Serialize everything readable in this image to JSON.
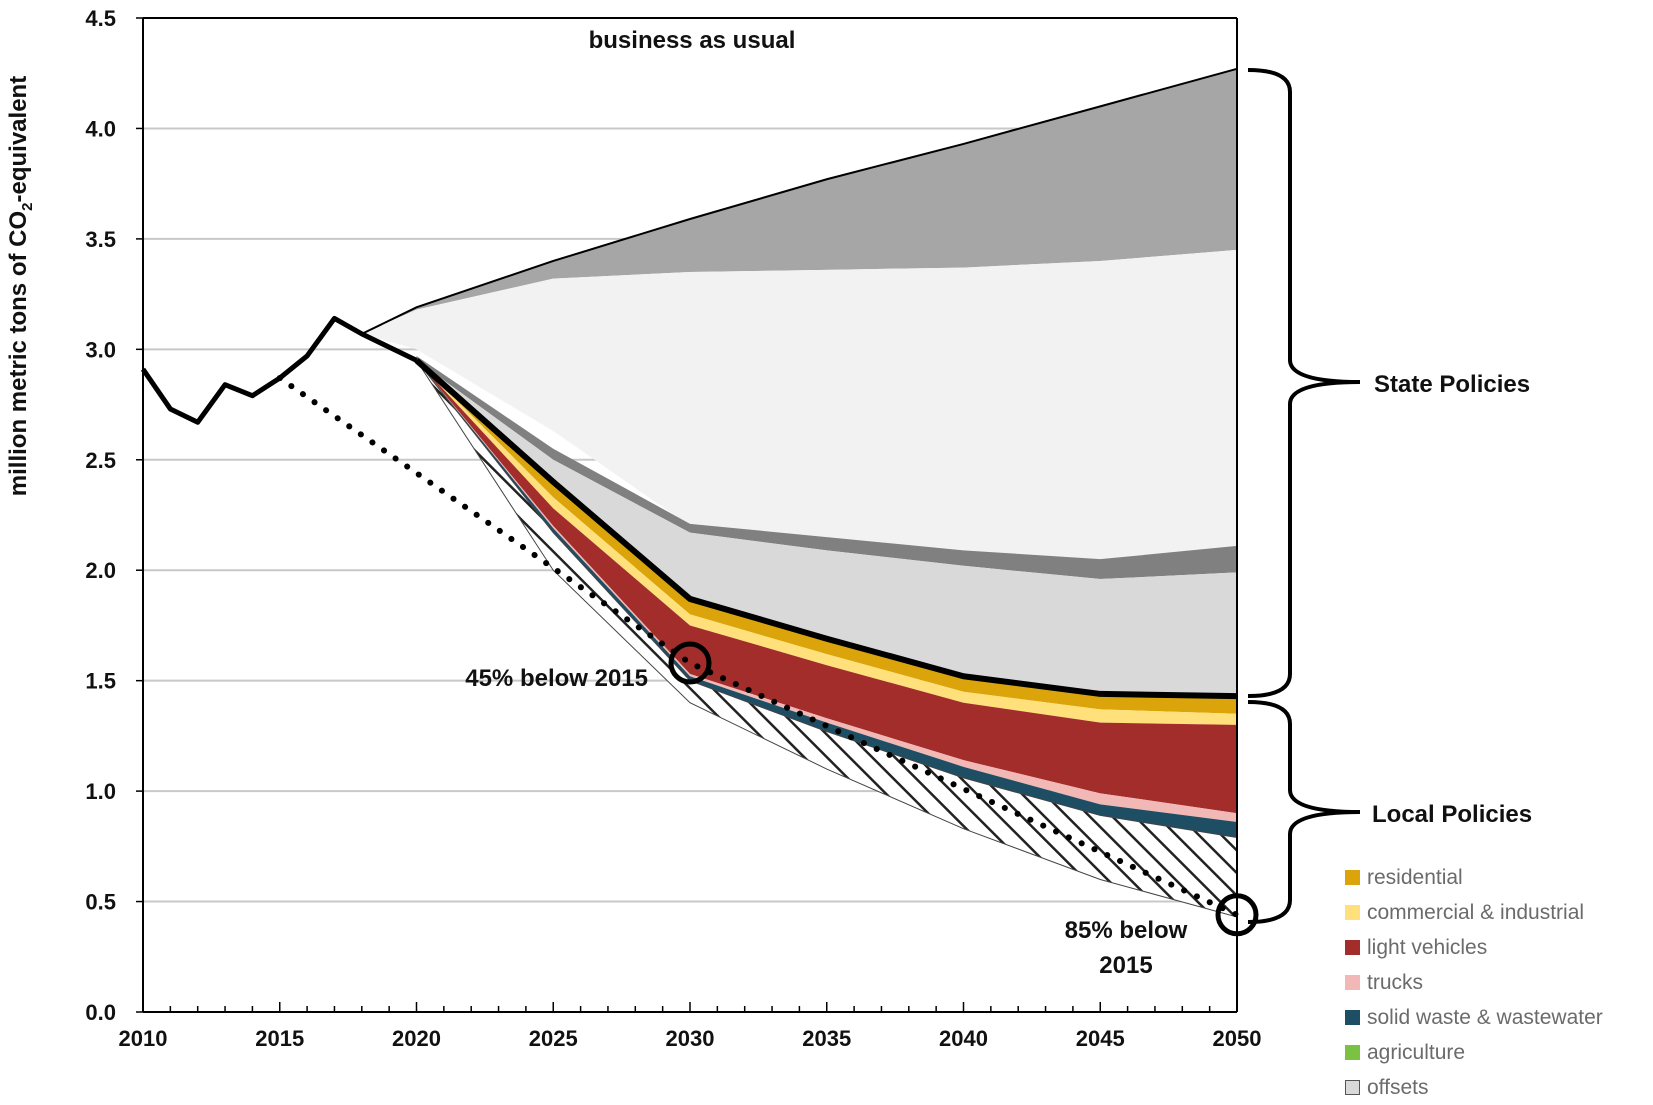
{
  "chart_data": {
    "type": "area",
    "ylabel_prefix": "million metric tons of CO",
    "ylabel_sub": "2",
    "ylabel_suffix": "-equivalent",
    "ylim": [
      0,
      4.5
    ],
    "xlim": [
      2010,
      2050
    ],
    "yticks": [
      0.0,
      0.5,
      1.0,
      1.5,
      2.0,
      2.5,
      3.0,
      3.5,
      4.0,
      4.5
    ],
    "ytick_labels": [
      "0.0",
      "0.5",
      "1.0",
      "1.5",
      "2.0",
      "2.5",
      "3.0",
      "3.5",
      "4.0",
      "4.5"
    ],
    "xticks": [
      2010,
      2015,
      2020,
      2025,
      2030,
      2035,
      2040,
      2045,
      2050
    ],
    "xtick_labels": [
      "2010",
      "2015",
      "2020",
      "2025",
      "2030",
      "2035",
      "2040",
      "2045",
      "2050"
    ],
    "grid": true,
    "historical": {
      "x": [
        2010,
        2011,
        2012,
        2013,
        2014,
        2015,
        2016,
        2017,
        2018,
        2019,
        2020
      ],
      "y": [
        2.91,
        2.73,
        2.67,
        2.84,
        2.79,
        2.87,
        2.97,
        3.14,
        3.07,
        3.01,
        2.95
      ]
    },
    "business_as_usual": {
      "x": [
        2018,
        2020,
        2025,
        2030,
        2035,
        2040,
        2045,
        2050
      ],
      "y": [
        3.07,
        3.19,
        3.4,
        3.59,
        3.77,
        3.93,
        4.1,
        4.27
      ]
    },
    "series": [
      {
        "name": "",
        "color": "#a6a6a6",
        "x": [
          2018,
          2020,
          2025,
          2030,
          2035,
          2040,
          2045,
          2050
        ],
        "lower": [
          3.07,
          3.18,
          3.32,
          3.35,
          3.36,
          3.37,
          3.4,
          3.45
        ],
        "upper": [
          3.07,
          3.19,
          3.4,
          3.59,
          3.77,
          3.93,
          4.1,
          4.27
        ]
      },
      {
        "name": "",
        "color": "#f2f2f2",
        "x": [
          2018,
          2020,
          2025,
          2030,
          2035,
          2040,
          2045,
          2050
        ],
        "lower": [
          3.07,
          3.0,
          2.63,
          2.2,
          2.14,
          2.09,
          2.05,
          2.1
        ],
        "upper": [
          3.07,
          3.18,
          3.32,
          3.35,
          3.36,
          3.37,
          3.4,
          3.45
        ]
      },
      {
        "name": "",
        "color": "#808080",
        "x": [
          2020,
          2025,
          2030,
          2035,
          2040,
          2045,
          2050
        ],
        "lower": [
          2.95,
          2.5,
          2.17,
          2.09,
          2.02,
          1.96,
          1.99
        ],
        "upper": [
          2.97,
          2.55,
          2.21,
          2.15,
          2.09,
          2.05,
          2.11
        ]
      },
      {
        "name": "",
        "color": "#d9d9d9",
        "x": [
          2020,
          2025,
          2030,
          2035,
          2040,
          2045,
          2050
        ],
        "lower": [
          2.95,
          2.4,
          1.87,
          1.69,
          1.52,
          1.44,
          1.43
        ],
        "upper": [
          2.95,
          2.5,
          2.17,
          2.09,
          2.02,
          1.96,
          1.99
        ]
      },
      {
        "name": "residential",
        "color": "#dba40a",
        "x": [
          2020,
          2025,
          2030,
          2035,
          2040,
          2045,
          2050
        ],
        "lower": [
          2.95,
          2.33,
          1.8,
          1.62,
          1.45,
          1.37,
          1.35
        ],
        "upper": [
          2.95,
          2.4,
          1.87,
          1.69,
          1.52,
          1.44,
          1.43
        ]
      },
      {
        "name": "commercial & industrial",
        "color": "#ffe07a",
        "x": [
          2020,
          2025,
          2030,
          2035,
          2040,
          2045,
          2050
        ],
        "lower": [
          2.95,
          2.28,
          1.75,
          1.57,
          1.4,
          1.31,
          1.3
        ],
        "upper": [
          2.95,
          2.33,
          1.8,
          1.62,
          1.45,
          1.37,
          1.35
        ]
      },
      {
        "name": "light vehicles",
        "color": "#a32d2b",
        "x": [
          2020,
          2025,
          2030,
          2035,
          2040,
          2045,
          2050
        ],
        "lower": [
          2.95,
          2.2,
          1.53,
          1.33,
          1.14,
          0.99,
          0.9
        ],
        "upper": [
          2.95,
          2.28,
          1.75,
          1.57,
          1.4,
          1.31,
          1.3
        ]
      },
      {
        "name": "trucks",
        "color": "#f2b8b5",
        "x": [
          2020,
          2025,
          2030,
          2035,
          2040,
          2045,
          2050
        ],
        "lower": [
          2.95,
          2.19,
          1.52,
          1.31,
          1.11,
          0.94,
          0.86
        ],
        "upper": [
          2.95,
          2.2,
          1.53,
          1.33,
          1.14,
          0.99,
          0.9
        ]
      },
      {
        "name": "solid waste & wastewater",
        "color": "#1e4e64",
        "x": [
          2020,
          2025,
          2030,
          2035,
          2040,
          2045,
          2050
        ],
        "lower": [
          2.95,
          2.17,
          1.5,
          1.27,
          1.06,
          0.89,
          0.79
        ],
        "upper": [
          2.95,
          2.19,
          1.52,
          1.31,
          1.11,
          0.94,
          0.86
        ]
      },
      {
        "name": "agriculture",
        "color": "#7cc242",
        "x": [
          2020,
          2025,
          2030,
          2035,
          2040,
          2045,
          2050
        ],
        "lower": [
          2.95,
          2.17,
          1.5,
          1.27,
          1.06,
          0.89,
          0.79
        ],
        "upper": [
          2.95,
          2.17,
          1.5,
          1.27,
          1.06,
          0.89,
          0.79
        ]
      },
      {
        "name": "offsets",
        "color": "hatch",
        "x": [
          2020,
          2025,
          2030,
          2035,
          2040,
          2045,
          2050
        ],
        "lower": [
          2.95,
          2.0,
          1.4,
          1.1,
          0.83,
          0.6,
          0.43
        ],
        "upper": [
          2.95,
          2.17,
          1.5,
          1.27,
          1.06,
          0.89,
          0.79
        ]
      }
    ],
    "policy_path": {
      "x": [
        2020,
        2025,
        2030,
        2035,
        2040,
        2045,
        2050
      ],
      "y": [
        2.95,
        2.4,
        1.87,
        1.69,
        1.52,
        1.44,
        1.43
      ]
    },
    "target_line": {
      "x": [
        2015,
        2030,
        2050
      ],
      "y": [
        2.87,
        1.58,
        0.44
      ]
    },
    "annotations": {
      "bau": "business as usual",
      "state": "State Policies",
      "local": "Local Policies",
      "target_2030": "45% below 2015",
      "target_2050_line1": "85% below",
      "target_2050_line2": "2015"
    },
    "targets": [
      {
        "x": 2030,
        "y": 1.58
      },
      {
        "x": 2050,
        "y": 0.44
      }
    ],
    "legend": [
      {
        "name": "residential",
        "color": "#dba40a"
      },
      {
        "name": "commercial & industrial",
        "color": "#ffe07a"
      },
      {
        "name": "light vehicles",
        "color": "#a32d2b"
      },
      {
        "name": "trucks",
        "color": "#f2b8b5"
      },
      {
        "name": "solid waste & wastewater",
        "color": "#1e4e64"
      },
      {
        "name": "agriculture",
        "color": "#7cc242"
      },
      {
        "name": "offsets",
        "color": "#d9d9d9"
      }
    ],
    "legend_position": "bottom-right"
  }
}
